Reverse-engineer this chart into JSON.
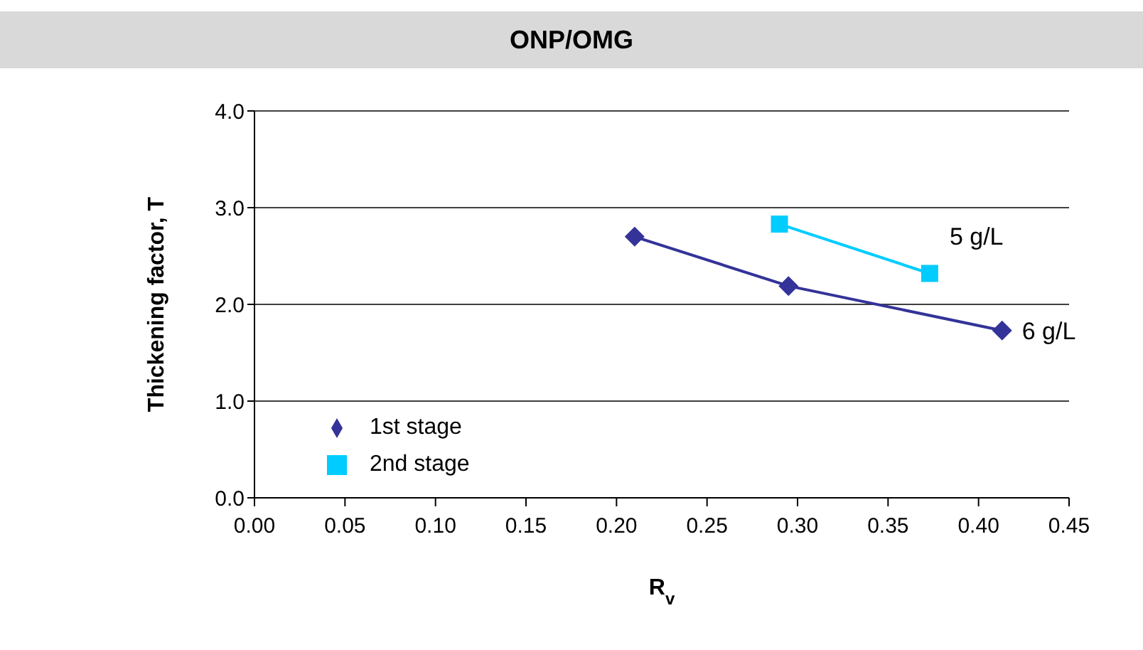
{
  "chart_data": {
    "type": "line",
    "title": "ONP/OMG",
    "xlabel": "R$_{v}$",
    "ylabel": "Thickening factor, T",
    "xlim": [
      0,
      0.45
    ],
    "xticks": [
      {
        "value": 0,
        "label": "0.00"
      },
      {
        "value": 0.05,
        "label": "0.05"
      },
      {
        "value": 0.1,
        "label": "0.10"
      },
      {
        "value": 0.15,
        "label": "0.15"
      },
      {
        "value": 0.2,
        "label": "0.20"
      },
      {
        "value": 0.25,
        "label": "0.25"
      },
      {
        "value": 0.3,
        "label": "0.30"
      },
      {
        "value": 0.35,
        "label": "0.35"
      },
      {
        "value": 0.4,
        "label": "0.40"
      },
      {
        "value": 0.45,
        "label": "0.45"
      }
    ],
    "ylim": [
      0,
      4
    ],
    "yticks": [
      {
        "value": 0,
        "label": "0.0"
      },
      {
        "value": 1,
        "label": "1.0"
      },
      {
        "value": 2,
        "label": "2.0"
      },
      {
        "value": 3,
        "label": "3.0"
      },
      {
        "value": 4,
        "label": "4.0"
      }
    ],
    "grid": "y",
    "legend": "bottom left",
    "series": [
      {
        "name": "2nd stage",
        "color": "#00ccff",
        "marker": "square",
        "x": [
          0.29,
          0.373
        ],
        "values": [
          2.83,
          2.32
        ]
      },
      {
        "name": "1st stage",
        "color": "#333399",
        "marker": "diamond",
        "x": [
          0.21,
          0.295,
          0.413
        ],
        "values": [
          2.7,
          2.19,
          1.73
        ]
      }
    ],
    "annotations": [
      {
        "text": "5 g/L",
        "x": 0.373,
        "y": 2.32
      },
      {
        "text": "6 g/L",
        "x": 0.413,
        "y": 1.73
      }
    ]
  }
}
